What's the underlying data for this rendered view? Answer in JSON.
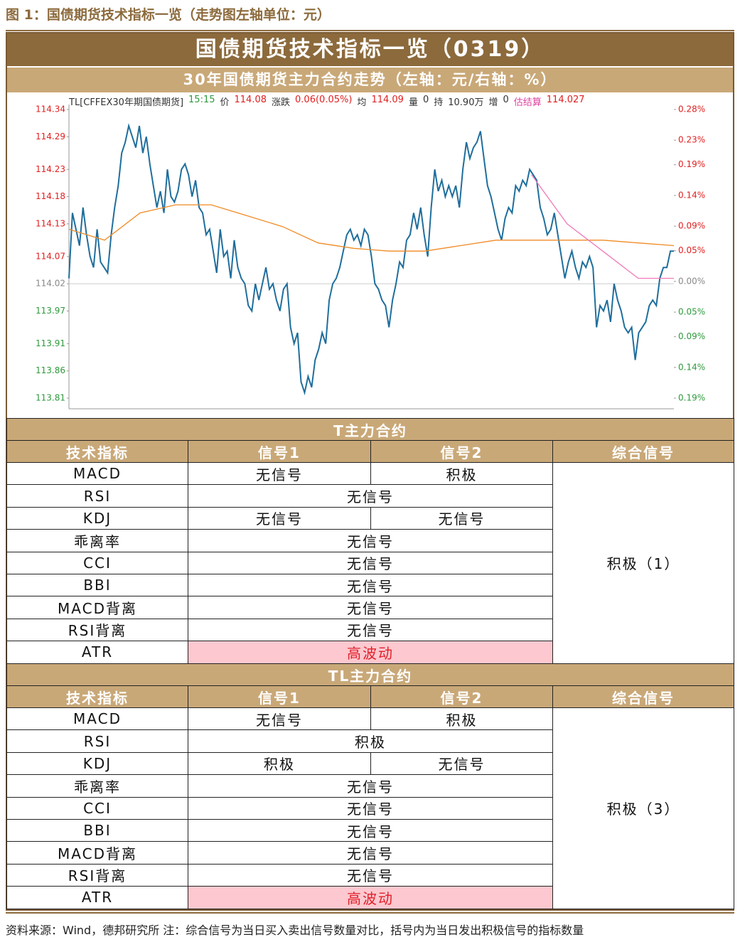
{
  "caption": "图 1：国债期货技术指标一览（走势图左轴单位：元）",
  "title": "国债期货技术指标一览（0319）",
  "chart_title": "30年国债期货主力合约走势（左轴：元/右轴：%）",
  "chart_data": {
    "type": "line",
    "info": [
      {
        "text": "TL[CFFEX30年期国债期货]",
        "color": "#333333"
      },
      {
        "text": "15:15",
        "color": "#2e9a3c"
      },
      {
        "text": "价",
        "color": "#333333"
      },
      {
        "text": "114.08",
        "color": "#e02020"
      },
      {
        "text": "涨跌",
        "color": "#333333"
      },
      {
        "text": "0.06(0.05%)",
        "color": "#e02020"
      },
      {
        "text": "均",
        "color": "#333333"
      },
      {
        "text": "114.09",
        "color": "#e02020"
      },
      {
        "text": "量",
        "color": "#333333"
      },
      {
        "text": "0",
        "color": "#333333"
      },
      {
        "text": "持",
        "color": "#333333"
      },
      {
        "text": "10.90万",
        "color": "#333333"
      },
      {
        "text": "增",
        "color": "#333333"
      },
      {
        "text": "0",
        "color": "#333333"
      },
      {
        "text": "估结算",
        "color": "#e040a0"
      },
      {
        "text": "114.027",
        "color": "#e02020"
      }
    ],
    "ylim": [
      113.81,
      114.34
    ],
    "yticks": [
      114.34,
      114.29,
      114.23,
      114.18,
      114.13,
      114.07,
      114.02,
      113.97,
      113.91,
      113.86,
      113.81
    ],
    "y2lim": [
      -0.19,
      0.28
    ],
    "y2ticks": [
      {
        "value": 0.28,
        "label": "0.28%"
      },
      {
        "value": 0.23,
        "label": "0.23%"
      },
      {
        "value": 0.19,
        "label": "0.19%"
      },
      {
        "value": 0.14,
        "label": "0.14%"
      },
      {
        "value": 0.09,
        "label": "0.09%"
      },
      {
        "value": 0.05,
        "label": "0.05%"
      },
      {
        "value": 0,
        "label": "0.00%"
      },
      {
        "value": -0.05,
        "label": "0.05%"
      },
      {
        "value": -0.09,
        "label": "0.09%"
      },
      {
        "value": -0.14,
        "label": "0.14%"
      },
      {
        "value": -0.19,
        "label": "0.19%"
      }
    ],
    "up_color": "#e02020",
    "down_color": "#2e9a3c",
    "flat_color": "#888888",
    "series": [
      {
        "color": "#1f6e9c",
        "values": [
          114.03,
          114.15,
          114.12,
          114.09,
          114.16,
          114.11,
          114.07,
          114.05,
          114.12,
          114.06,
          114.05,
          114.04,
          114.11,
          114.16,
          114.2,
          114.26,
          114.28,
          114.31,
          114.29,
          114.27,
          114.31,
          114.26,
          114.29,
          114.24,
          114.2,
          114.16,
          114.19,
          114.15,
          114.23,
          114.18,
          114.17,
          114.19,
          114.23,
          114.24,
          114.22,
          114.18,
          114.21,
          114.16,
          114.15,
          114.11,
          114.12,
          114.08,
          114.04,
          114.12,
          114.07,
          114.08,
          114.03,
          114.1,
          114.05,
          114.03,
          114.02,
          113.98,
          113.97,
          114.02,
          113.99,
          114.02,
          114.05,
          114.01,
          114.02,
          113.99,
          113.97,
          114.01,
          114.02,
          113.94,
          113.91,
          113.93,
          113.84,
          113.82,
          113.85,
          113.83,
          113.88,
          113.9,
          113.93,
          113.91,
          113.99,
          114.02,
          114.03,
          114.05,
          114.08,
          114.11,
          114.12,
          114.1,
          114.11,
          114.09,
          114.12,
          114.11,
          114.07,
          114.02,
          114.01,
          113.99,
          113.98,
          113.94,
          113.99,
          114.02,
          114.06,
          114.05,
          114.1,
          114.11,
          114.15,
          114.12,
          114.16,
          114.11,
          114.07,
          114.16,
          114.23,
          114.19,
          114.21,
          114.18,
          114.2,
          114.18,
          114.2,
          114.16,
          114.23,
          114.28,
          114.25,
          114.27,
          114.28,
          114.3,
          114.25,
          114.2,
          114.18,
          114.15,
          114.12,
          114.1,
          114.14,
          114.16,
          114.15,
          114.2,
          114.19,
          114.21,
          114.2,
          114.23,
          114.22,
          114.21,
          114.16,
          114.14,
          114.11,
          114.12,
          114.15,
          114.11,
          114.07,
          114.03,
          114.06,
          114.08,
          114.05,
          114.03,
          114.06,
          114.05,
          114.07,
          114.05,
          113.94,
          113.98,
          113.97,
          113.99,
          113.95,
          114.02,
          113.99,
          113.97,
          113.94,
          113.93,
          113.94,
          113.88,
          113.93,
          113.94,
          113.95,
          113.98,
          113.99,
          113.98,
          114.03,
          114.05,
          114.05,
          114.08,
          114.08
        ]
      },
      {
        "color": "#f08a24",
        "values": [
          114.12,
          114.1,
          114.15,
          114.165,
          114.165,
          114.145,
          114.125,
          114.095,
          114.085,
          114.08,
          114.08,
          114.09,
          114.1,
          114.1,
          114.1,
          114.1,
          114.095,
          114.09
        ]
      },
      {
        "color": "#f07ab8",
        "values": [
          null,
          null,
          null,
          null,
          null,
          null,
          null,
          null,
          null,
          null,
          null,
          null,
          null,
          114.22,
          114.13,
          114.08,
          114.03,
          114.03
        ]
      }
    ]
  },
  "tables": [
    {
      "title": "T主力合约",
      "columns": [
        "技术指标",
        "信号1",
        "信号2",
        "综合信号"
      ],
      "rows": [
        {
          "indicator": "MACD",
          "signals": [
            "无信号",
            "积极"
          ]
        },
        {
          "indicator": "RSI",
          "signals": [
            "无信号"
          ]
        },
        {
          "indicator": "KDJ",
          "signals": [
            "无信号",
            "无信号"
          ]
        },
        {
          "indicator": "乖离率",
          "signals": [
            "无信号"
          ]
        },
        {
          "indicator": "CCI",
          "signals": [
            "无信号"
          ]
        },
        {
          "indicator": "BBI",
          "signals": [
            "无信号"
          ]
        },
        {
          "indicator": "MACD背离",
          "signals": [
            "无信号"
          ]
        },
        {
          "indicator": "RSI背离",
          "signals": [
            "无信号"
          ]
        },
        {
          "indicator": "ATR",
          "signals": [
            "高波动"
          ],
          "highlight": true
        }
      ],
      "summary": "积极（1）"
    },
    {
      "title": "TL主力合约",
      "columns": [
        "技术指标",
        "信号1",
        "信号2",
        "综合信号"
      ],
      "rows": [
        {
          "indicator": "MACD",
          "signals": [
            "无信号",
            "积极"
          ]
        },
        {
          "indicator": "RSI",
          "signals": [
            "积极"
          ]
        },
        {
          "indicator": "KDJ",
          "signals": [
            "积极",
            "无信号"
          ]
        },
        {
          "indicator": "乖离率",
          "signals": [
            "无信号"
          ]
        },
        {
          "indicator": "CCI",
          "signals": [
            "无信号"
          ]
        },
        {
          "indicator": "BBI",
          "signals": [
            "无信号"
          ]
        },
        {
          "indicator": "MACD背离",
          "signals": [
            "无信号"
          ]
        },
        {
          "indicator": "RSI背离",
          "signals": [
            "无信号"
          ]
        },
        {
          "indicator": "ATR",
          "signals": [
            "高波动"
          ],
          "highlight": true
        }
      ],
      "summary": "积极（3）"
    }
  ],
  "footer": "资料来源：Wind，德邦研究所 注：综合信号为当日买入卖出信号数量对比，括号内为当日发出积极信号的指标数量"
}
